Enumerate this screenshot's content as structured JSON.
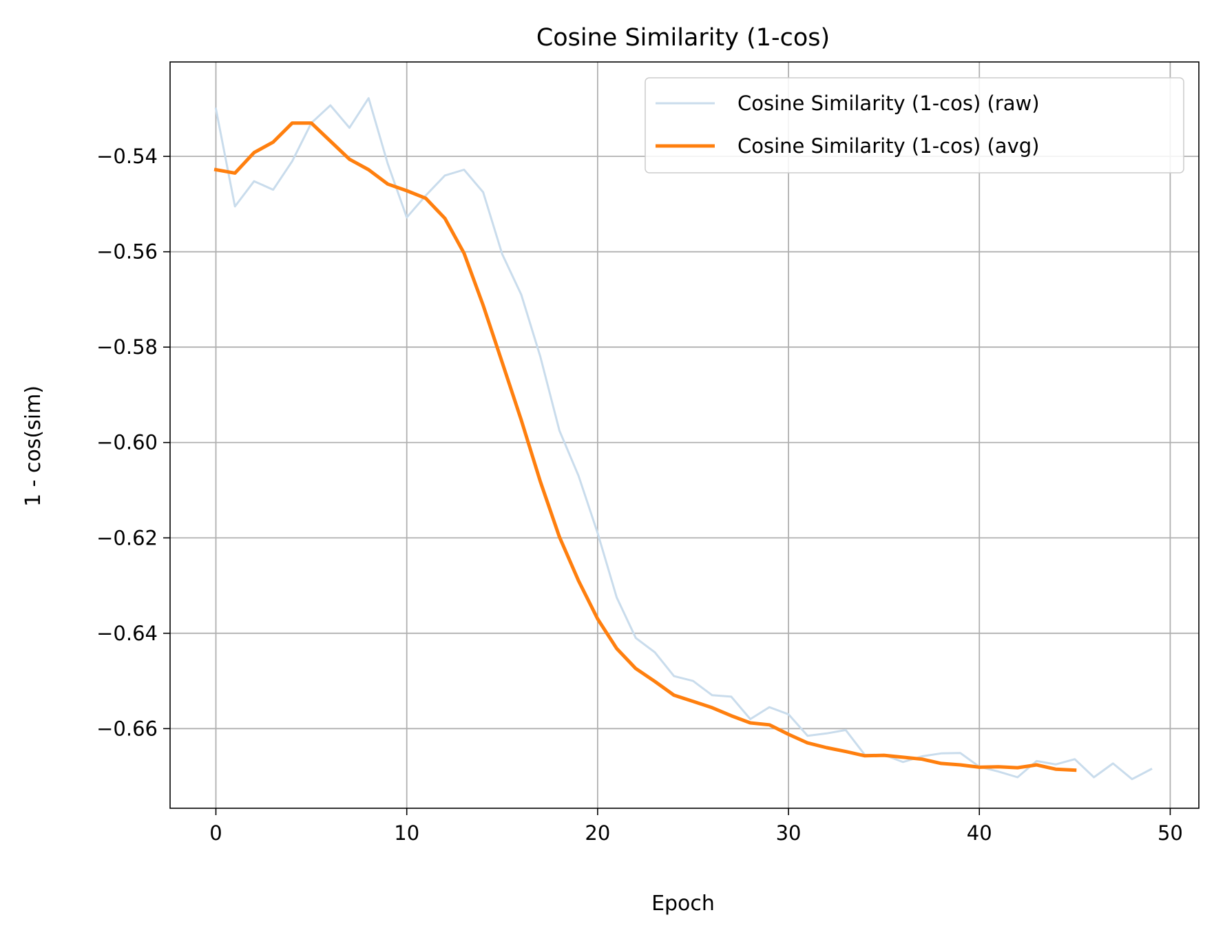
{
  "chart_data": {
    "type": "line",
    "title": "Cosine Similarity (1-cos)",
    "xlabel": "Epoch",
    "ylabel": "1 - cos(sim)",
    "xlim": [
      -2.4,
      51.5
    ],
    "ylim": [
      -0.6767,
      -0.5202
    ],
    "xticks": [
      0,
      10,
      20,
      30,
      40,
      50
    ],
    "xtick_labels": [
      "0",
      "10",
      "20",
      "30",
      "40",
      "50"
    ],
    "yticks": [
      -0.66,
      -0.64,
      -0.62,
      -0.6,
      -0.58,
      -0.56,
      -0.54
    ],
    "ytick_labels": [
      "−0.66",
      "−0.64",
      "−0.62",
      "−0.60",
      "−0.58",
      "−0.56",
      "−0.54"
    ],
    "grid": true,
    "legend": "top-right",
    "series": [
      {
        "name": "Cosine Similarity (1-cos) (raw)",
        "color": "#c9dcec",
        "x": [
          0,
          1,
          2,
          3,
          4,
          5,
          6,
          7,
          8,
          9,
          10,
          11,
          12,
          13,
          14,
          15,
          16,
          17,
          18,
          19,
          20,
          21,
          22,
          23,
          24,
          25,
          26,
          27,
          28,
          29,
          30,
          31,
          32,
          33,
          34,
          35,
          36,
          37,
          38,
          39,
          40,
          41,
          42,
          43,
          44,
          45,
          46,
          47,
          48,
          49
        ],
        "y": [
          -0.53,
          -0.5505,
          -0.5452,
          -0.547,
          -0.541,
          -0.533,
          -0.5293,
          -0.534,
          -0.5278,
          -0.5415,
          -0.5528,
          -0.5482,
          -0.544,
          -0.5428,
          -0.5475,
          -0.5605,
          -0.569,
          -0.582,
          -0.5975,
          -0.607,
          -0.619,
          -0.6325,
          -0.641,
          -0.644,
          -0.649,
          -0.65,
          -0.653,
          -0.6533,
          -0.658,
          -0.6555,
          -0.657,
          -0.6615,
          -0.661,
          -0.6603,
          -0.6655,
          -0.6655,
          -0.667,
          -0.6658,
          -0.6652,
          -0.6651,
          -0.668,
          -0.669,
          -0.6702,
          -0.6668,
          -0.6675,
          -0.6664,
          -0.6702,
          -0.6673,
          -0.6706,
          -0.6685
        ]
      },
      {
        "name": "Cosine Similarity (1-cos) (avg)",
        "color": "#ff7f0e",
        "x": [
          0,
          1,
          2,
          3,
          4,
          5,
          6,
          7,
          8,
          9,
          10,
          11,
          12,
          13,
          14,
          15,
          16,
          17,
          18,
          19,
          20,
          21,
          22,
          23,
          24,
          25,
          26,
          27,
          28,
          29,
          30,
          31,
          32,
          33,
          34,
          35,
          36,
          37,
          38,
          39,
          40,
          41,
          42,
          43,
          44,
          45
        ],
        "y": [
          -0.5428,
          -0.5435,
          -0.5392,
          -0.537,
          -0.533,
          -0.533,
          -0.5368,
          -0.5406,
          -0.5428,
          -0.5458,
          -0.5472,
          -0.5488,
          -0.553,
          -0.5603,
          -0.5712,
          -0.5832,
          -0.5953,
          -0.6082,
          -0.6198,
          -0.629,
          -0.637,
          -0.6432,
          -0.6474,
          -0.6501,
          -0.653,
          -0.6543,
          -0.6556,
          -0.6573,
          -0.6588,
          -0.6592,
          -0.6612,
          -0.663,
          -0.664,
          -0.6648,
          -0.6657,
          -0.6656,
          -0.666,
          -0.6664,
          -0.6673,
          -0.6676,
          -0.6681,
          -0.668,
          -0.6682,
          -0.6676,
          -0.6685,
          -0.6687
        ]
      }
    ]
  }
}
